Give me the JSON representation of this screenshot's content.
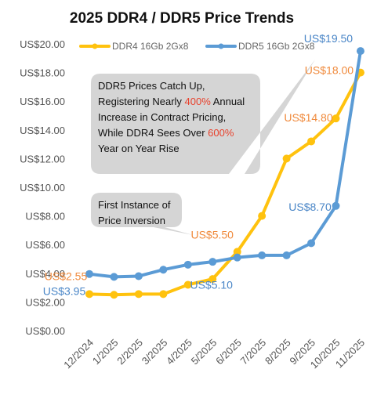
{
  "chart_data": {
    "type": "line",
    "title": "2025 DDR4 / DDR5 Price Trends",
    "categories": [
      "12/2024",
      "1/2025",
      "2/2025",
      "3/2025",
      "4/2025",
      "5/2025",
      "6/2025",
      "7/2025",
      "8/2025",
      "9/2025",
      "10/2025",
      "11/2025"
    ],
    "ylim": [
      0,
      20
    ],
    "y_ticks": [
      "US$0.00",
      "US$2.00",
      "US$4.00",
      "US$6.00",
      "US$8.00",
      "US$10.00",
      "US$12.00",
      "US$14.00",
      "US$16.00",
      "US$18.00",
      "US$20.00"
    ],
    "grid": false,
    "legend_position": "top",
    "series": [
      {
        "name": "DDR4 16Gb 2Gx8",
        "color": "#FFC20E",
        "label_color": "#F08A3C",
        "values": [
          2.55,
          2.5,
          2.55,
          2.55,
          3.2,
          3.6,
          5.5,
          8.0,
          12.0,
          13.2,
          14.8,
          18.0
        ]
      },
      {
        "name": "DDR5 16Gb 2Gx8",
        "color": "#5B9BD5",
        "label_color": "#4A86C7",
        "values": [
          3.95,
          3.75,
          3.8,
          4.25,
          4.6,
          4.8,
          5.1,
          5.25,
          5.25,
          6.1,
          8.7,
          19.5
        ]
      }
    ],
    "data_labels": [
      {
        "series": 1,
        "index": 0,
        "text": "US$3.95"
      },
      {
        "series": 0,
        "index": 0,
        "text": "US$2.55"
      },
      {
        "series": 0,
        "index": 6,
        "text": "US$5.50"
      },
      {
        "series": 1,
        "index": 6,
        "text": "US$5.10"
      },
      {
        "series": 1,
        "index": 10,
        "text": "US$8.70"
      },
      {
        "series": 0,
        "index": 10,
        "text": "US$14.80"
      },
      {
        "series": 0,
        "index": 11,
        "text": "US$18.00"
      },
      {
        "series": 1,
        "index": 11,
        "text": "US$19.50"
      }
    ],
    "annotations": [
      {
        "lines": [
          [
            {
              "t": "DDR5 Prices Catch Up,"
            }
          ],
          [
            {
              "t": "Registering Nearly "
            },
            {
              "t": "400%",
              "c": "#E8412C"
            },
            {
              "t": " Annual"
            }
          ],
          [
            {
              "t": "Increase in Contract Pricing,"
            }
          ],
          [
            {
              "t": "While DDR4 Sees Over "
            },
            {
              "t": "600%",
              "c": "#E8412C"
            }
          ],
          [
            {
              "t": "Year on Year Rise"
            }
          ]
        ]
      },
      {
        "lines": [
          [
            {
              "t": "First Instance of"
            }
          ],
          [
            {
              "t": "Price Inversion"
            }
          ]
        ]
      }
    ]
  }
}
